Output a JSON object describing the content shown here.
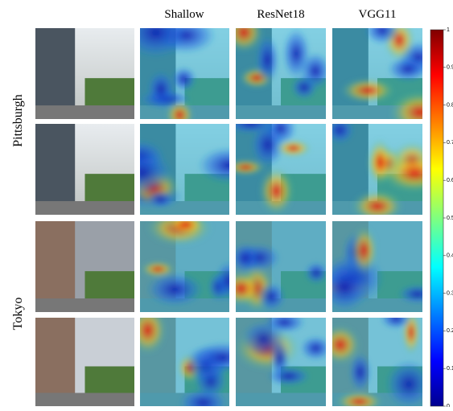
{
  "figure": {
    "columns": [
      "Shallow",
      "ResNet18",
      "VGG11"
    ],
    "rows": [
      "Pittsburgh",
      "Tokyo"
    ],
    "colorbar": {
      "lim": [
        0,
        1
      ],
      "ticks": [
        0,
        0.1,
        0.2,
        0.3,
        0.4,
        0.5,
        0.6,
        0.7,
        0.8,
        0.9,
        1
      ]
    }
  }
}
